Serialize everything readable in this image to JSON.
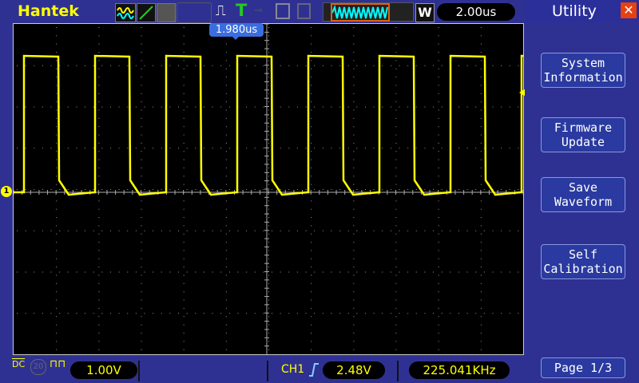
{
  "header": {
    "brand": "Hantek",
    "timebase": "2.00us",
    "mode_badge": "W",
    "trigger_status_icon": "trigger-T",
    "cursor_readout": "1.980us"
  },
  "right_panel": {
    "title": "Utility",
    "menu": [
      {
        "label": "System\nInformation"
      },
      {
        "label": "Firmware\nUpdate"
      },
      {
        "label": "Save\nWaveform"
      },
      {
        "label": "Self\nCalibration"
      }
    ],
    "page": "Page 1/3"
  },
  "footer": {
    "coupling": "DC",
    "bw_limit": "20",
    "ch1_scale": "1.00V",
    "trigger_source": "CH1",
    "trigger_level": "2.48V",
    "frequency": "225.041KHz"
  },
  "trace": {
    "channel": "CH1",
    "color": "#ffff00",
    "shape": "square",
    "frequency": "225.041KHz",
    "marker": "1"
  },
  "colors": {
    "background": "#2f3192",
    "trace": "#ffff00",
    "screen": "#000000"
  }
}
